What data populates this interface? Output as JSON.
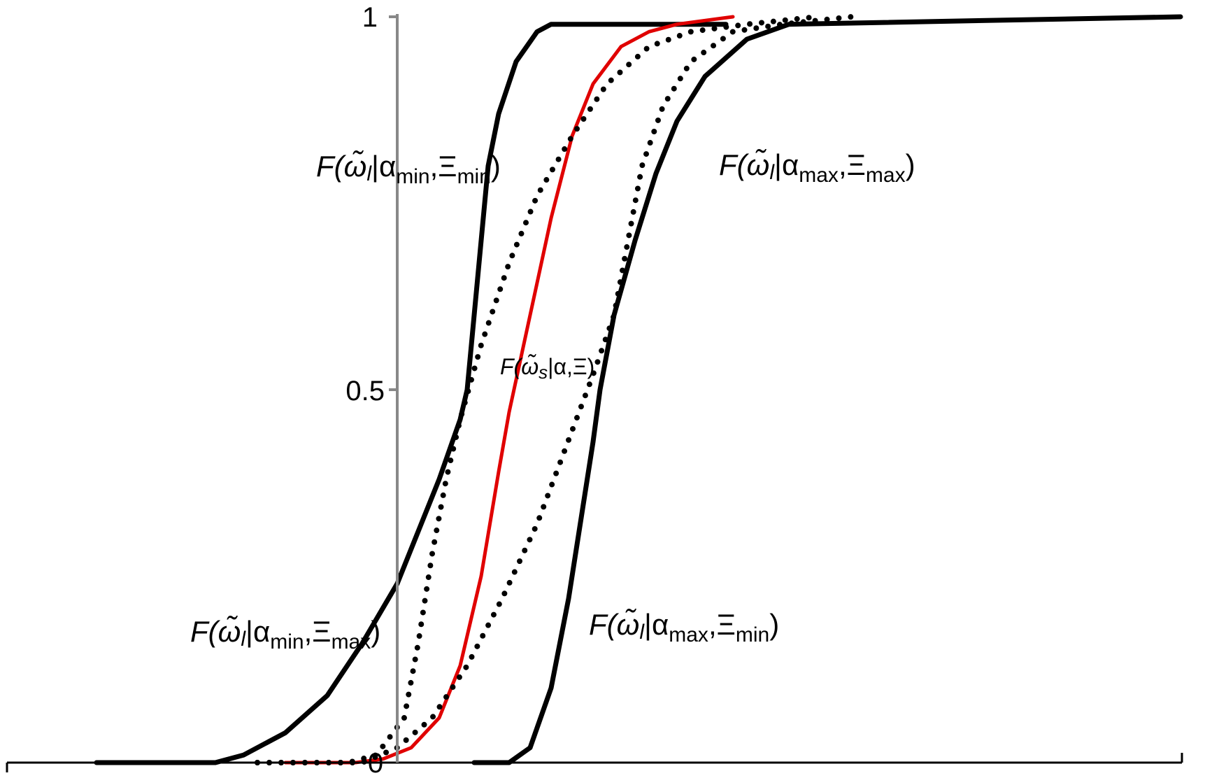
{
  "chart_data": {
    "type": "line",
    "title": "",
    "xlabel": "",
    "ylabel": "",
    "ylim": [
      0,
      1
    ],
    "xlim": [
      -4.6,
      11.2
    ],
    "grid": false,
    "legend": "none",
    "y_ticks": [
      {
        "value": 0,
        "label": "0"
      },
      {
        "value": 0.5,
        "label": "0.5"
      },
      {
        "value": 1,
        "label": "1"
      }
    ],
    "colors": {
      "red_series": "#e00000",
      "black_series": "#000000",
      "y_axis": "#888888"
    },
    "series": [
      {
        "style": "solid-black",
        "points": [
          [
            -4.3,
            0
          ],
          [
            -2.6,
            0
          ],
          [
            -2.2,
            0.01
          ],
          [
            -1.6,
            0.04
          ],
          [
            -1.0,
            0.09
          ],
          [
            -0.5,
            0.16
          ],
          [
            0,
            0.24
          ],
          [
            0.3,
            0.31
          ],
          [
            0.6,
            0.38
          ],
          [
            0.9,
            0.46
          ],
          [
            1.0,
            0.5
          ],
          [
            1.1,
            0.6
          ],
          [
            1.2,
            0.7
          ],
          [
            1.3,
            0.8
          ],
          [
            1.45,
            0.87
          ],
          [
            1.7,
            0.94
          ],
          [
            2.0,
            0.98
          ],
          [
            2.2,
            0.99
          ],
          [
            4.7,
            0.99
          ]
        ]
      },
      {
        "style": "solid-black",
        "points": [
          [
            1.1,
            0
          ],
          [
            1.6,
            0
          ],
          [
            1.9,
            0.02
          ],
          [
            2.2,
            0.1
          ],
          [
            2.45,
            0.22
          ],
          [
            2.65,
            0.34
          ],
          [
            2.8,
            0.43
          ],
          [
            2.9,
            0.5
          ],
          [
            3.1,
            0.6
          ],
          [
            3.4,
            0.7
          ],
          [
            3.7,
            0.79
          ],
          [
            4.0,
            0.86
          ],
          [
            4.4,
            0.92
          ],
          [
            5.0,
            0.97
          ],
          [
            5.6,
            0.99
          ],
          [
            11.2,
            1.0
          ]
        ]
      },
      {
        "style": "solid-red",
        "points": [
          [
            -1.6,
            0
          ],
          [
            -0.6,
            0
          ],
          [
            -0.2,
            0.005
          ],
          [
            0.2,
            0.02
          ],
          [
            0.6,
            0.06
          ],
          [
            0.9,
            0.13
          ],
          [
            1.2,
            0.25
          ],
          [
            1.45,
            0.39
          ],
          [
            1.6,
            0.47
          ],
          [
            1.9,
            0.6
          ],
          [
            2.2,
            0.73
          ],
          [
            2.5,
            0.84
          ],
          [
            2.8,
            0.91
          ],
          [
            3.2,
            0.96
          ],
          [
            3.6,
            0.98
          ],
          [
            4.0,
            0.99
          ],
          [
            4.8,
            1.0
          ]
        ]
      },
      {
        "style": "dotted-black",
        "points": [
          [
            -2.0,
            0
          ],
          [
            -0.7,
            0
          ],
          [
            -0.3,
            0.01
          ],
          [
            0.1,
            0.06
          ],
          [
            0.3,
            0.16
          ],
          [
            0.5,
            0.28
          ],
          [
            0.7,
            0.38
          ],
          [
            0.9,
            0.46
          ],
          [
            1.2,
            0.56
          ],
          [
            1.6,
            0.67
          ],
          [
            2.0,
            0.76
          ],
          [
            2.5,
            0.84
          ],
          [
            3.0,
            0.91
          ],
          [
            3.6,
            0.96
          ],
          [
            4.2,
            0.98
          ],
          [
            5.0,
            0.99
          ],
          [
            6.0,
            1.0
          ]
        ]
      },
      {
        "style": "dotted-black",
        "points": [
          [
            -2.0,
            0
          ],
          [
            -0.5,
            0
          ],
          [
            0,
            0.02
          ],
          [
            0.5,
            0.06
          ],
          [
            1.0,
            0.13
          ],
          [
            1.5,
            0.22
          ],
          [
            2.0,
            0.32
          ],
          [
            2.4,
            0.42
          ],
          [
            2.8,
            0.52
          ],
          [
            3.1,
            0.6
          ],
          [
            3.3,
            0.7
          ],
          [
            3.5,
            0.8
          ],
          [
            3.8,
            0.88
          ],
          [
            4.2,
            0.94
          ],
          [
            4.8,
            0.98
          ],
          [
            5.5,
            0.99
          ],
          [
            6.5,
            1.0
          ]
        ]
      }
    ],
    "annotations": [
      {
        "base": "F(",
        "omega": "ω̃",
        "sub1": "l",
        "bar": "|α",
        "sub2": "min",
        "comma": ",Ξ",
        "sub3": "min",
        "close": ")"
      },
      {
        "base": "F(",
        "omega": "ω̃",
        "sub1": "l",
        "bar": "|α",
        "sub2": "max",
        "comma": ",Ξ",
        "sub3": "max",
        "close": ")"
      },
      {
        "base": "F(",
        "omega": "ω̃",
        "sub1": "s",
        "bar": "|α,Ξ)"
      },
      {
        "base": "F(",
        "omega": "ω̃",
        "sub1": "l",
        "bar": "|α",
        "sub2": "min",
        "comma": ",Ξ",
        "sub3": "max",
        "close": ")"
      },
      {
        "base": "F(",
        "omega": "ω̃",
        "sub1": "l",
        "bar": "|α",
        "sub2": "max",
        "comma": ",Ξ",
        "sub3": "min",
        "close": ")"
      }
    ]
  }
}
